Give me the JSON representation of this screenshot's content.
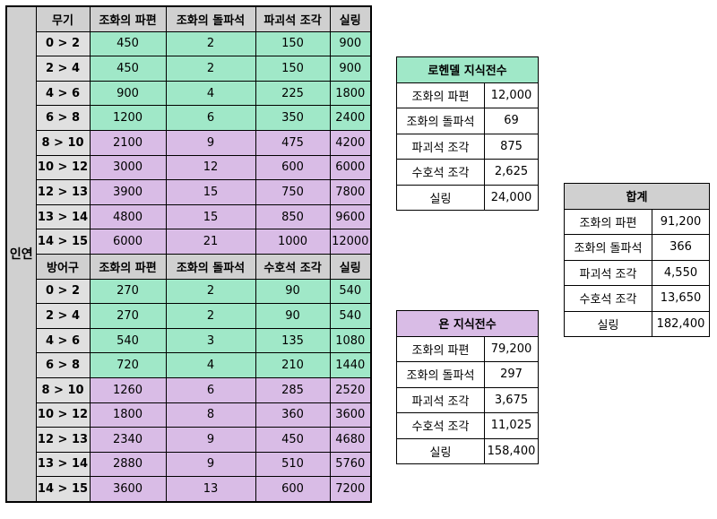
{
  "side_label": "인연",
  "weapon": {
    "headers": [
      "무기",
      "조화의 파편",
      "조화의 돌파석",
      "파괴석 조각",
      "실링"
    ],
    "rows": [
      {
        "level": "0 > 2",
        "a": "450",
        "b": "2",
        "c": "150",
        "d": "900",
        "tier": "green"
      },
      {
        "level": "2 > 4",
        "a": "450",
        "b": "2",
        "c": "150",
        "d": "900",
        "tier": "green"
      },
      {
        "level": "4 > 6",
        "a": "900",
        "b": "4",
        "c": "225",
        "d": "1800",
        "tier": "green"
      },
      {
        "level": "6 > 8",
        "a": "1200",
        "b": "6",
        "c": "350",
        "d": "2400",
        "tier": "green"
      },
      {
        "level": "8 > 10",
        "a": "2100",
        "b": "9",
        "c": "475",
        "d": "4200",
        "tier": "purple"
      },
      {
        "level": "10 > 12",
        "a": "3000",
        "b": "12",
        "c": "600",
        "d": "6000",
        "tier": "purple"
      },
      {
        "level": "12 > 13",
        "a": "3900",
        "b": "15",
        "c": "750",
        "d": "7800",
        "tier": "purple"
      },
      {
        "level": "13 > 14",
        "a": "4800",
        "b": "15",
        "c": "850",
        "d": "9600",
        "tier": "purple"
      },
      {
        "level": "14 > 15",
        "a": "6000",
        "b": "21",
        "c": "1000",
        "d": "12000",
        "tier": "purple"
      }
    ]
  },
  "armor": {
    "headers": [
      "방어구",
      "조화의 파편",
      "조화의 돌파석",
      "수호석 조각",
      "실링"
    ],
    "rows": [
      {
        "level": "0 > 2",
        "a": "270",
        "b": "2",
        "c": "90",
        "d": "540",
        "tier": "green"
      },
      {
        "level": "2 > 4",
        "a": "270",
        "b": "2",
        "c": "90",
        "d": "540",
        "tier": "green"
      },
      {
        "level": "4 > 6",
        "a": "540",
        "b": "3",
        "c": "135",
        "d": "1080",
        "tier": "green"
      },
      {
        "level": "6 > 8",
        "a": "720",
        "b": "4",
        "c": "210",
        "d": "1440",
        "tier": "green"
      },
      {
        "level": "8 > 10",
        "a": "1260",
        "b": "6",
        "c": "285",
        "d": "2520",
        "tier": "purple"
      },
      {
        "level": "10 > 12",
        "a": "1800",
        "b": "8",
        "c": "360",
        "d": "3600",
        "tier": "purple"
      },
      {
        "level": "12 > 13",
        "a": "2340",
        "b": "9",
        "c": "450",
        "d": "4680",
        "tier": "purple"
      },
      {
        "level": "13 > 14",
        "a": "2880",
        "b": "9",
        "c": "510",
        "d": "5760",
        "tier": "purple"
      },
      {
        "level": "14 > 15",
        "a": "3600",
        "b": "13",
        "c": "600",
        "d": "7200",
        "tier": "purple"
      }
    ]
  },
  "lohen": {
    "title": "로헨델 지식전수",
    "rows": [
      {
        "label": "조화의 파편",
        "value": "12,000"
      },
      {
        "label": "조화의 돌파석",
        "value": "69"
      },
      {
        "label": "파괴석 조각",
        "value": "875"
      },
      {
        "label": "수호석 조각",
        "value": "2,625"
      },
      {
        "label": "실링",
        "value": "24,000"
      }
    ]
  },
  "yun": {
    "title": "욘 지식전수",
    "rows": [
      {
        "label": "조화의 파편",
        "value": "79,200"
      },
      {
        "label": "조화의 돌파석",
        "value": "297"
      },
      {
        "label": "파괴석 조각",
        "value": "3,675"
      },
      {
        "label": "수호석 조각",
        "value": "11,025"
      },
      {
        "label": "실링",
        "value": "158,400"
      }
    ]
  },
  "total": {
    "title": "합계",
    "rows": [
      {
        "label": "조화의 파편",
        "value": "91,200"
      },
      {
        "label": "조화의 돌파석",
        "value": "366"
      },
      {
        "label": "파괴석 조각",
        "value": "4,550"
      },
      {
        "label": "수호석 조각",
        "value": "13,650"
      },
      {
        "label": "실링",
        "value": "182,400"
      }
    ]
  },
  "colors": {
    "green": "#a0e8c8",
    "purple": "#d9bce6",
    "header_gray": "#d0d0d0"
  }
}
